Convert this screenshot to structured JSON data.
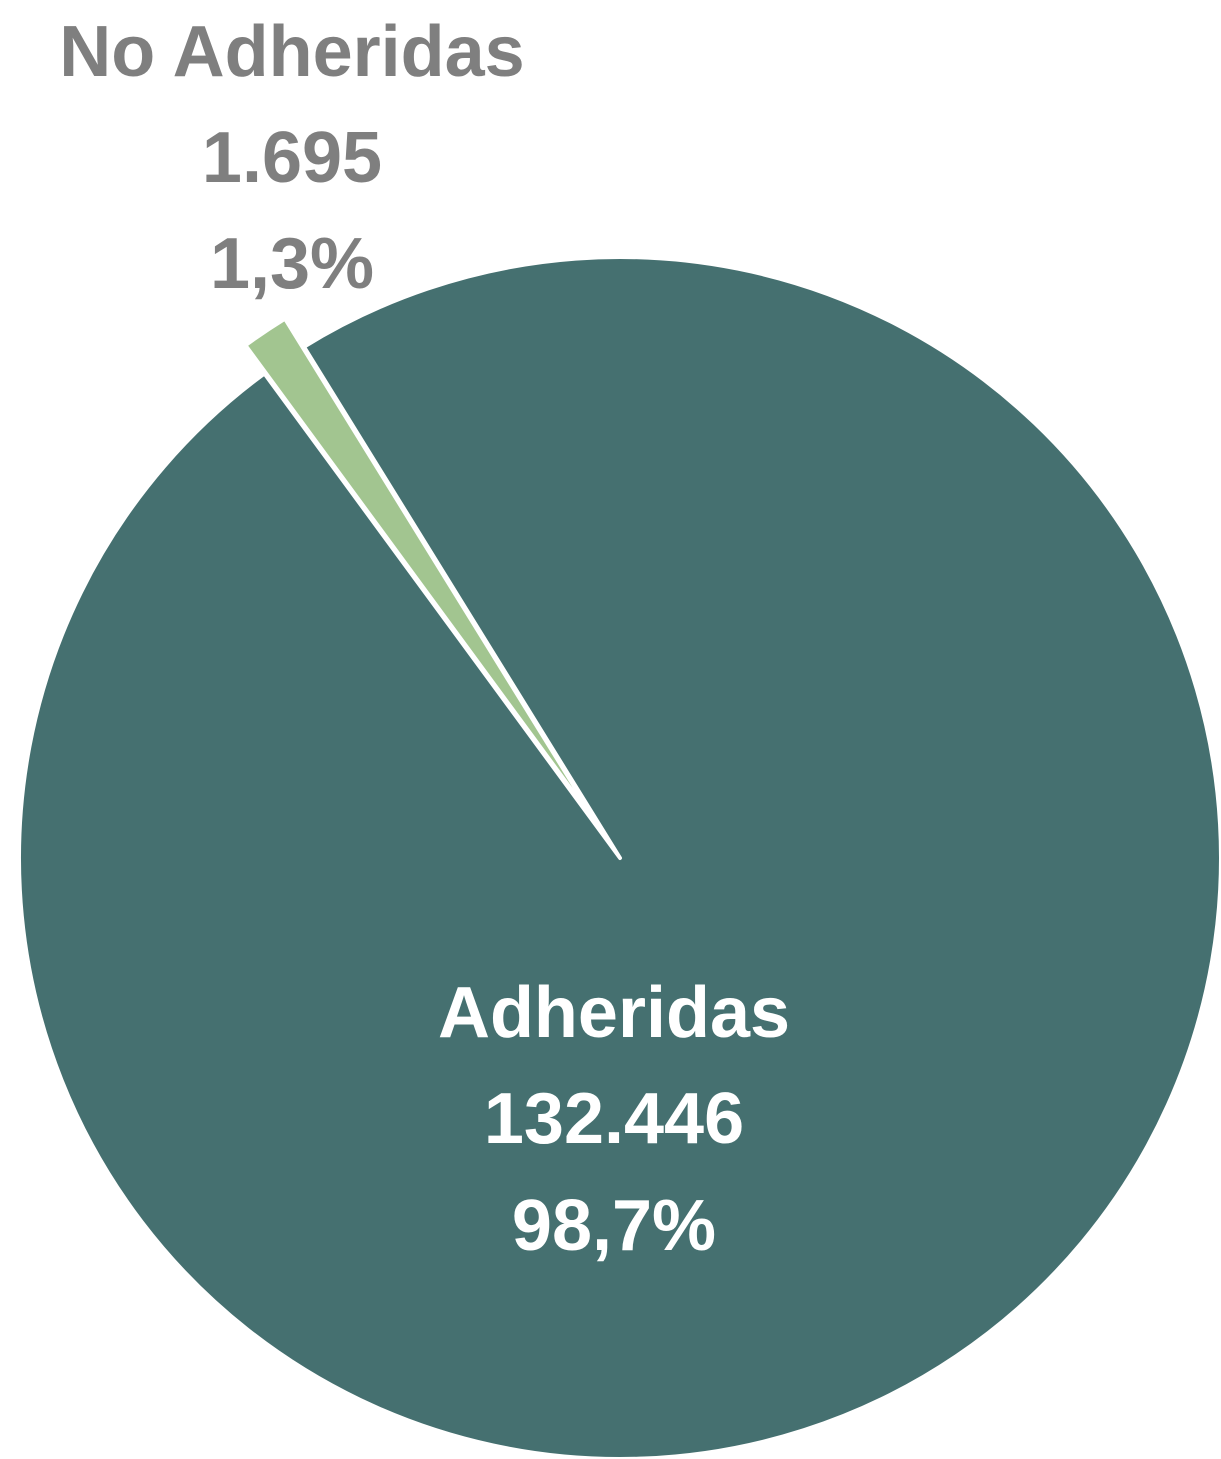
{
  "chart_data": {
    "type": "pie",
    "slices": [
      {
        "label": "Adheridas",
        "value": 132446,
        "value_label": "132.446",
        "percent_label": "98,7%",
        "color": "#457070",
        "label_color": "#ffffff"
      },
      {
        "label": "No Adheridas",
        "value": 1695,
        "value_label": "1.695",
        "percent_label": "1,3%",
        "color": "#a2c590",
        "label_color": "#7f7f7f"
      }
    ],
    "legend": "none"
  }
}
